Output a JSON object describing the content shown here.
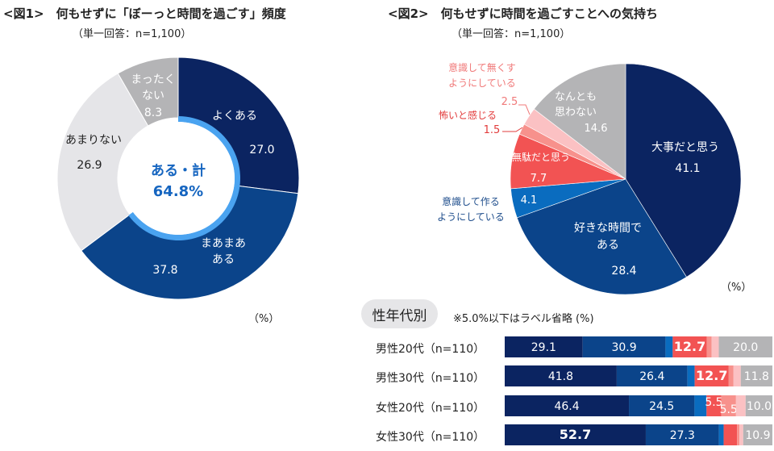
{
  "fig1": {
    "title": "<図1>　何もせずに「ぼーっと時間を過ごす」頻度",
    "subtitle": "（単一回答：n=1,100）",
    "unit": "（%）",
    "center_label_line1": "ある・計",
    "center_label_line2": "64.8%"
  },
  "fig2": {
    "title": "<図2>　何もせずに時間を過ごすことへの気持ち",
    "subtitle": "（単一回答：n=1,100）",
    "unit": "（%）"
  },
  "bars": {
    "section_label": "性年代別",
    "note": "※5.0%以下はラベル省略 (%)"
  },
  "chart_data": [
    {
      "type": "pie",
      "variant": "donut",
      "title": "何もせずに「ぼーっと時間を過ごす」頻度",
      "subtitle": "単一回答：n=1,100",
      "unit": "%",
      "labels": [
        "よくある",
        "まあまあある",
        "あまりない",
        "まったくない"
      ],
      "values": [
        27.0,
        37.8,
        26.9,
        8.3
      ],
      "colors": [
        "#0b2461",
        "#0b448a",
        "#e5e5e8",
        "#b4b4b6"
      ],
      "center_annotation": "ある・計 64.8%",
      "center_ring_color": "#4aa3f0"
    },
    {
      "type": "pie",
      "title": "何もせずに時間を過ごすことへの気持ち",
      "subtitle": "単一回答：n=1,100",
      "unit": "%",
      "labels": [
        "大事だと思う",
        "好きな時間である",
        "意識して作るようにしている",
        "無駄だと思う",
        "怖いと感じる",
        "意識して無くすようにしている",
        "なんとも思わない"
      ],
      "values": [
        41.1,
        28.4,
        4.1,
        7.7,
        1.5,
        2.5,
        14.6
      ],
      "colors": [
        "#0b2461",
        "#0b448a",
        "#0a6cbf",
        "#f25353",
        "#f7918c",
        "#fbc1c3",
        "#b4b4b6"
      ],
      "label_colors": [
        "#ffffff",
        "#ffffff",
        "#1f4e8c",
        "#ffffff",
        "#e23c3c",
        "#f07a7a",
        "#ffffff"
      ]
    },
    {
      "type": "bar",
      "orientation": "horizontal",
      "stacked": true,
      "title": "性年代別",
      "note": "※5.0%以下はラベル省略",
      "unit": "%",
      "categories": [
        "男性20代（n=110）",
        "男性30代（n=110）",
        "女性20代（n=110）",
        "女性30代（n=110）"
      ],
      "series": [
        {
          "name": "大事だと思う",
          "color": "#0b2461",
          "values": [
            29.1,
            41.8,
            46.4,
            52.7
          ]
        },
        {
          "name": "好きな時間である",
          "color": "#0b448a",
          "values": [
            30.9,
            26.4,
            24.5,
            27.3
          ]
        },
        {
          "name": "意識して作るようにしている",
          "color": "#0a6cbf",
          "values": [
            2.7,
            2.7,
            4.5,
            1.8
          ]
        },
        {
          "name": "無駄だと思う",
          "color": "#f25353",
          "values": [
            12.7,
            12.7,
            5.5,
            5.0
          ]
        },
        {
          "name": "怖いと感じる",
          "color": "#f7918c",
          "values": [
            1.8,
            1.8,
            5.5,
            0.9
          ]
        },
        {
          "name": "意識して無くすようにしている",
          "color": "#fbc1c3",
          "values": [
            2.7,
            2.7,
            3.6,
            1.4
          ]
        },
        {
          "name": "なんとも思わない",
          "color": "#b4b4b6",
          "values": [
            20.0,
            11.8,
            10.0,
            10.9
          ]
        }
      ],
      "shown_labels": [
        [
          "29.1",
          "30.9",
          "",
          "12.7",
          "",
          "",
          "20.0"
        ],
        [
          "41.8",
          "26.4",
          "",
          "12.7",
          "",
          "",
          "11.8"
        ],
        [
          "46.4",
          "24.5",
          "",
          "5.5",
          "5.5",
          "",
          "10.0"
        ],
        [
          "52.7",
          "27.3",
          "",
          "",
          "",
          "",
          "10.9"
        ]
      ],
      "xlim": [
        0,
        100
      ]
    }
  ]
}
